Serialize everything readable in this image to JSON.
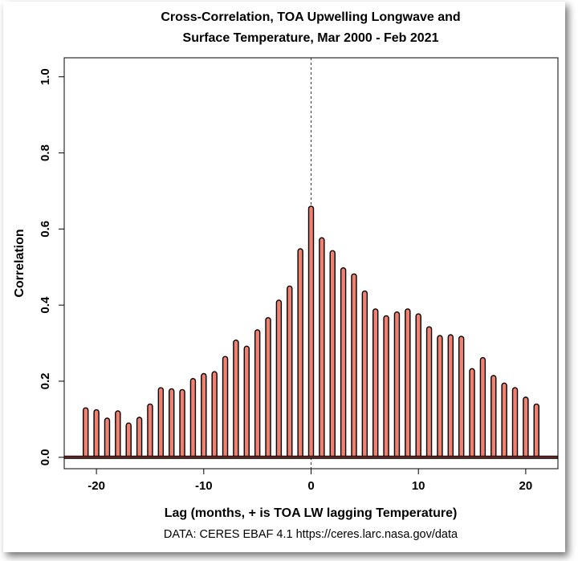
{
  "chart_data": {
    "type": "bar",
    "title_line1": "Cross-Correlation, TOA Upwelling Longwave and",
    "title_line2": "Surface Temperature, Mar 2000 - Feb 2021",
    "xlabel": "Lag (months, + is TOA LW lagging Temperature)",
    "ylabel": "Correlation",
    "caption": "DATA: CERES EBAF 4.1 https://ceres.larc.nasa.gov/data",
    "xlim": [
      -23,
      23
    ],
    "ylim": [
      -0.03,
      1.05
    ],
    "x_ticks": [
      -20,
      -10,
      0,
      10,
      20
    ],
    "y_ticks": [
      0.0,
      0.2,
      0.4,
      0.6,
      0.8,
      1.0
    ],
    "x_tick_labels": [
      "-20",
      "-10",
      "0",
      "10",
      "20"
    ],
    "y_tick_labels": [
      "0.0",
      "0.2",
      "0.4",
      "0.6",
      "0.8",
      "1.0"
    ],
    "lags": [
      -21,
      -20,
      -19,
      -18,
      -17,
      -16,
      -15,
      -14,
      -13,
      -12,
      -11,
      -10,
      -9,
      -8,
      -7,
      -6,
      -5,
      -4,
      -3,
      -2,
      -1,
      0,
      1,
      2,
      3,
      4,
      5,
      6,
      7,
      8,
      9,
      10,
      11,
      12,
      13,
      14,
      15,
      16,
      17,
      18,
      19,
      20,
      21
    ],
    "values": [
      0.13,
      0.125,
      0.103,
      0.122,
      0.09,
      0.105,
      0.14,
      0.183,
      0.18,
      0.178,
      0.207,
      0.22,
      0.225,
      0.265,
      0.308,
      0.292,
      0.335,
      0.367,
      0.413,
      0.45,
      0.548,
      0.66,
      0.577,
      0.543,
      0.498,
      0.482,
      0.437,
      0.39,
      0.372,
      0.382,
      0.39,
      0.377,
      0.343,
      0.32,
      0.322,
      0.318,
      0.233,
      0.262,
      0.215,
      0.195,
      0.183,
      0.158,
      0.14
    ],
    "bar_color": "#f08070",
    "zero_line_color": "#000000",
    "vline_at": 0
  }
}
